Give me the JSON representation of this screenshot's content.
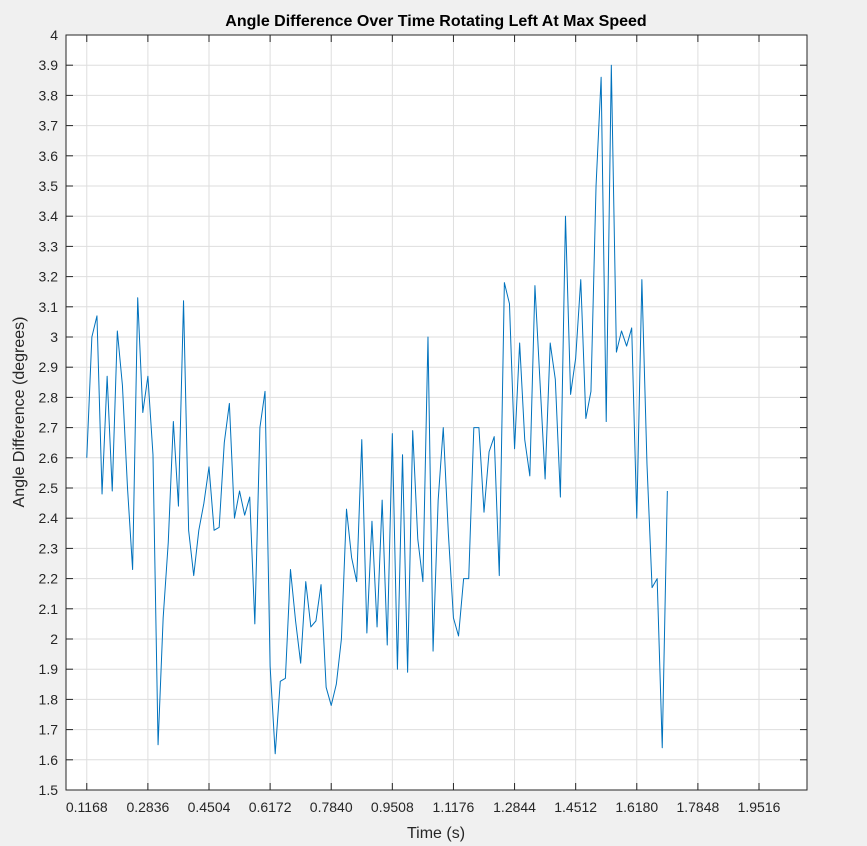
{
  "chart_data": {
    "type": "line",
    "title": "Angle Difference Over Time Rotating Left At Max Speed",
    "xlabel": "Time (s)",
    "ylabel": "Angle Difference (degrees)",
    "xlim": [
      0.0601,
      2.0826
    ],
    "ylim": [
      1.5,
      4.0
    ],
    "xticks": [
      "0.1168",
      "0.2836",
      "0.4504",
      "0.6172",
      "0.7840",
      "0.9508",
      "1.1176",
      "1.2844",
      "1.4512",
      "1.6180",
      "1.7848",
      "1.9516"
    ],
    "yticks": [
      "1.5",
      "1.6",
      "1.7",
      "1.8",
      "1.9",
      "2",
      "2.1",
      "2.2",
      "2.3",
      "2.4",
      "2.5",
      "2.6",
      "2.7",
      "2.8",
      "2.9",
      "3",
      "3.1",
      "3.2",
      "3.3",
      "3.4",
      "3.5",
      "3.6",
      "3.7",
      "3.8",
      "3.9",
      "4"
    ],
    "grid": true,
    "line_color": "#0072bd",
    "series": [
      {
        "x0": 0.1168,
        "dx": 0.0139,
        "values": [
          2.6,
          3.0,
          3.07,
          2.48,
          2.87,
          2.49,
          3.02,
          2.84,
          2.5,
          2.23,
          3.13,
          2.75,
          2.87,
          2.61,
          1.65,
          2.07,
          2.32,
          2.72,
          2.44,
          3.12,
          2.36,
          2.21,
          2.36,
          2.45,
          2.57,
          2.36,
          2.37,
          2.65,
          2.78,
          2.4,
          2.49,
          2.41,
          2.47,
          2.05,
          2.7,
          2.82,
          1.91,
          1.62,
          1.86,
          1.87,
          2.23,
          2.06,
          1.92,
          2.19,
          2.04,
          2.06,
          2.18,
          1.84,
          1.78,
          1.85,
          2.0,
          2.43,
          2.27,
          2.19,
          2.66,
          2.02,
          2.39,
          2.04,
          2.46,
          1.98,
          2.68,
          1.9,
          2.61,
          1.89,
          2.69,
          2.33,
          2.19,
          3.0,
          1.96,
          2.46,
          2.7,
          2.35,
          2.07,
          2.01,
          2.2,
          2.2,
          2.7,
          2.7,
          2.42,
          2.62,
          2.67,
          2.21,
          3.18,
          3.11,
          2.63,
          2.98,
          2.66,
          2.54,
          3.17,
          2.85,
          2.53,
          2.98,
          2.86,
          2.47,
          3.4,
          2.81,
          2.93,
          3.19,
          2.73,
          2.82,
          3.5,
          3.86,
          2.72,
          3.9,
          2.95,
          3.02,
          2.97,
          3.03,
          2.4,
          3.19,
          2.58,
          2.17,
          2.2,
          1.64,
          2.49
        ]
      }
    ]
  }
}
